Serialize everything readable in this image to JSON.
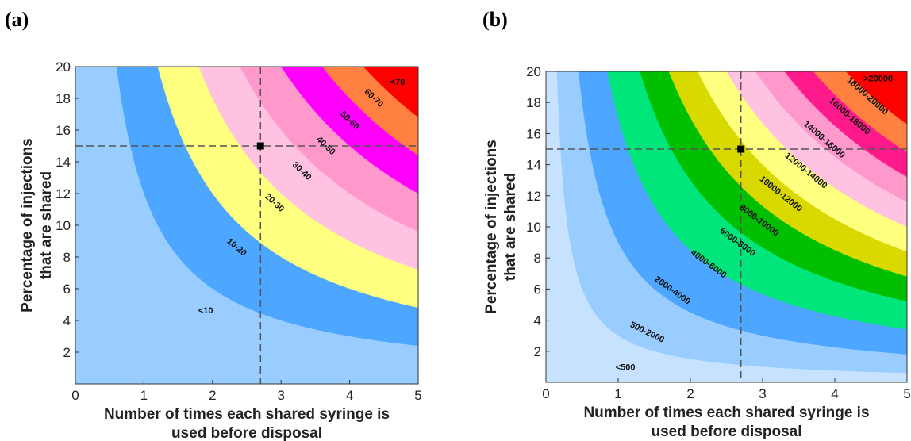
{
  "chart_data": [
    {
      "panel": "(a)",
      "type": "contour",
      "xlabel": [
        "Number of times each shared syringe is",
        "used before disposal"
      ],
      "ylabel": [
        "Percentage of injections",
        "that are shared"
      ],
      "xlim": [
        0,
        5
      ],
      "ylim": [
        0,
        20
      ],
      "x_ticks": [
        "0",
        "1",
        "2",
        "3",
        "4",
        "5"
      ],
      "y_ticks": [
        "2",
        "4",
        "6",
        "8",
        "10",
        "12",
        "14",
        "16",
        "18",
        "20"
      ],
      "model": "value proportional to x*y (shared syringe reuse × % shared)",
      "levels": [
        {
          "range": "<10",
          "upper_xy": 12,
          "color": "#99ccff"
        },
        {
          "range": "10-20",
          "upper_xy": 24,
          "color": "#4da6ff"
        },
        {
          "range": "20-30",
          "upper_xy": 36,
          "color": "#ffff80"
        },
        {
          "range": "30-40",
          "upper_xy": 48,
          "color": "#ffc2e0"
        },
        {
          "range": "40-50",
          "upper_xy": 60,
          "color": "#ff99cc"
        },
        {
          "range": "50-60",
          "upper_xy": 72,
          "color": "#ff00ff"
        },
        {
          "range": "60-70",
          "upper_xy": 84,
          "color": "#ff8040"
        },
        {
          "range": "<70",
          "upper_xy": null,
          "color": "#ff0000"
        }
      ],
      "labels": [
        {
          "text": "<10",
          "x": 1.9,
          "y": 4.6
        },
        {
          "text": "10-20",
          "x": 2.35,
          "y": 8.6
        },
        {
          "text": "20-30",
          "x": 2.9,
          "y": 11.4
        },
        {
          "text": "30-40",
          "x": 3.3,
          "y": 13.4
        },
        {
          "text": "40-50",
          "x": 3.65,
          "y": 15.0
        },
        {
          "text": "50-60",
          "x": 4.0,
          "y": 16.6
        },
        {
          "text": "60-70",
          "x": 4.35,
          "y": 18.0
        },
        {
          "text": "<70",
          "x": 4.7,
          "y": 19.0
        }
      ],
      "reference_point": {
        "x": 2.7,
        "y": 15
      }
    },
    {
      "panel": "(b)",
      "type": "contour",
      "xlabel": [
        "Number of times each shared syringe is",
        "used before disposal"
      ],
      "ylabel": [
        "Percentage of injections",
        "that are shared"
      ],
      "xlim": [
        0,
        5
      ],
      "ylim": [
        0,
        20
      ],
      "x_ticks": [
        "0",
        "1",
        "2",
        "3",
        "4",
        "5"
      ],
      "y_ticks": [
        "2",
        "4",
        "6",
        "8",
        "10",
        "12",
        "14",
        "16",
        "18",
        "20"
      ],
      "model": "value proportional to x*y (shared syringe reuse × % shared)",
      "levels": [
        {
          "range": "<500",
          "upper_xy": 3.0,
          "color": "#c6e2ff"
        },
        {
          "range": "500-2000",
          "upper_xy": 9.0,
          "color": "#99ccff"
        },
        {
          "range": "2000-4000",
          "upper_xy": 17.0,
          "color": "#4da6ff"
        },
        {
          "range": "4000-6000",
          "upper_xy": 26.0,
          "color": "#00e67a"
        },
        {
          "range": "6000-8000",
          "upper_xy": 34.0,
          "color": "#00bf00"
        },
        {
          "range": "8000-10000",
          "upper_xy": 42.0,
          "color": "#d9d900"
        },
        {
          "range": "10000-12000",
          "upper_xy": 50.0,
          "color": "#ffff80"
        },
        {
          "range": "12000-14000",
          "upper_xy": 58.0,
          "color": "#ffc2e0"
        },
        {
          "range": "14000-16000",
          "upper_xy": 66.0,
          "color": "#ff99cc"
        },
        {
          "range": "16000-18000",
          "upper_xy": 74.0,
          "color": "#ff1a8c"
        },
        {
          "range": "18000-20000",
          "upper_xy": 83.0,
          "color": "#ff8040"
        },
        {
          "range": ">20000",
          "upper_xy": null,
          "color": "#ff0000"
        }
      ],
      "labels": [
        {
          "text": "<500",
          "x": 1.1,
          "y": 0.95
        },
        {
          "text": "500-2000",
          "x": 1.4,
          "y": 3.2
        },
        {
          "text": "2000-4000",
          "x": 1.75,
          "y": 5.9
        },
        {
          "text": "4000-6000",
          "x": 2.25,
          "y": 7.6
        },
        {
          "text": "6000-8000",
          "x": 2.65,
          "y": 9.0
        },
        {
          "text": "8000-10000",
          "x": 2.95,
          "y": 10.4
        },
        {
          "text": "10000-12000",
          "x": 3.25,
          "y": 12.1
        },
        {
          "text": "12000-14000",
          "x": 3.6,
          "y": 13.6
        },
        {
          "text": "14000-16000",
          "x": 3.85,
          "y": 15.6
        },
        {
          "text": "16000-18000",
          "x": 4.2,
          "y": 17.1
        },
        {
          "text": "18000-20000",
          "x": 4.45,
          "y": 18.4
        },
        {
          "text": ">20000",
          "x": 4.6,
          "y": 19.5
        }
      ],
      "reference_point": {
        "x": 2.7,
        "y": 15
      }
    }
  ]
}
